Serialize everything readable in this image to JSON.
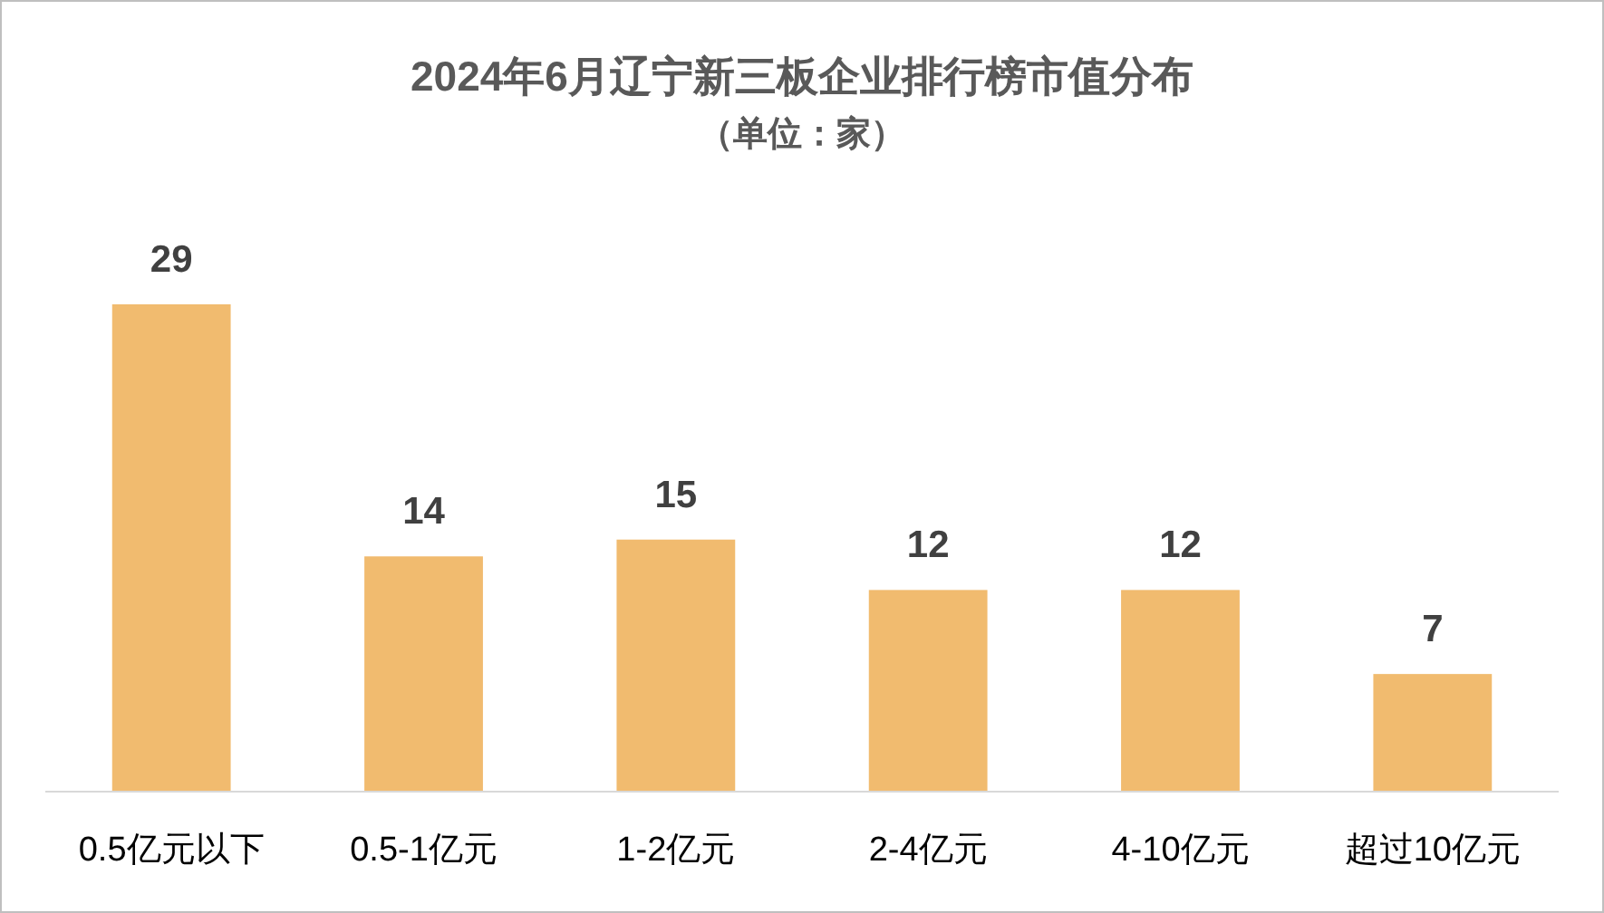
{
  "chart_data": {
    "type": "bar",
    "title": "2024年6月辽宁新三板企业排行榜市值分布",
    "subtitle": "（单位：家）",
    "categories": [
      "0.5亿元以下",
      "0.5-1亿元",
      "1-2亿元",
      "2-4亿元",
      "4-10亿元",
      "超过10亿元"
    ],
    "values": [
      29,
      14,
      15,
      12,
      12,
      7
    ],
    "color": "#f1bb6f",
    "data_labels": true
  }
}
